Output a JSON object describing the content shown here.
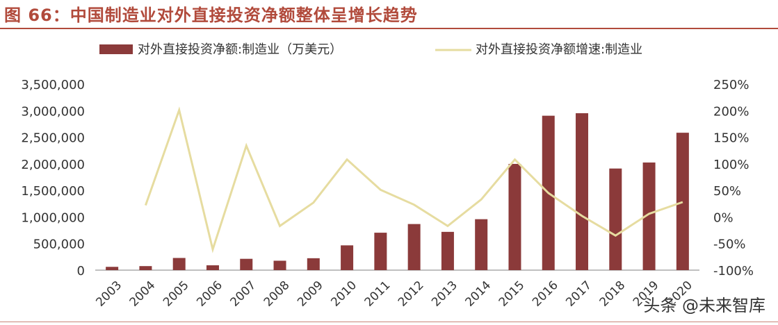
{
  "figure_title": "图 66：中国制造业对外直接投资净额整体呈增长趋势",
  "watermark": "头条 @未来智库",
  "colors": {
    "bar": "#8b3a3a",
    "line": "#e6dca0",
    "accent": "#b14a3b"
  },
  "chart_data": {
    "type": "bar+line",
    "legend_position": "top",
    "categories": [
      "2003",
      "2004",
      "2005",
      "2006",
      "2007",
      "2008",
      "2009",
      "2010",
      "2011",
      "2012",
      "2013",
      "2014",
      "2015",
      "2016",
      "2017",
      "2018",
      "2019",
      "2020"
    ],
    "series": [
      {
        "name": "对外直接投资净额:制造业（万美元）",
        "type": "bar",
        "axis": "left",
        "values": [
          62000,
          76000,
          229000,
          91000,
          213000,
          177000,
          224000,
          466000,
          704000,
          867000,
          720000,
          958000,
          1998000,
          2904000,
          2951000,
          1911000,
          2024000,
          2584000
        ]
      },
      {
        "name": "对外直接投资净额增速:制造业",
        "type": "line",
        "axis": "right",
        "values": [
          null,
          22,
          201,
          -61,
          134,
          -17,
          27,
          108,
          51,
          23,
          -17,
          33,
          108,
          45,
          2,
          -35,
          6,
          28
        ]
      }
    ],
    "y_left": {
      "min": 0,
      "max": 3500000,
      "ticks": [
        "3,500,000",
        "3,000,000",
        "2,500,000",
        "2,000,000",
        "1,500,000",
        "1,000,000",
        "500,000",
        "0"
      ]
    },
    "y_right": {
      "min": -100,
      "max": 250,
      "ticks": [
        "250%",
        "200%",
        "150%",
        "100%",
        "50%",
        "0%",
        "-50%",
        "-100%"
      ]
    },
    "grid": false
  }
}
